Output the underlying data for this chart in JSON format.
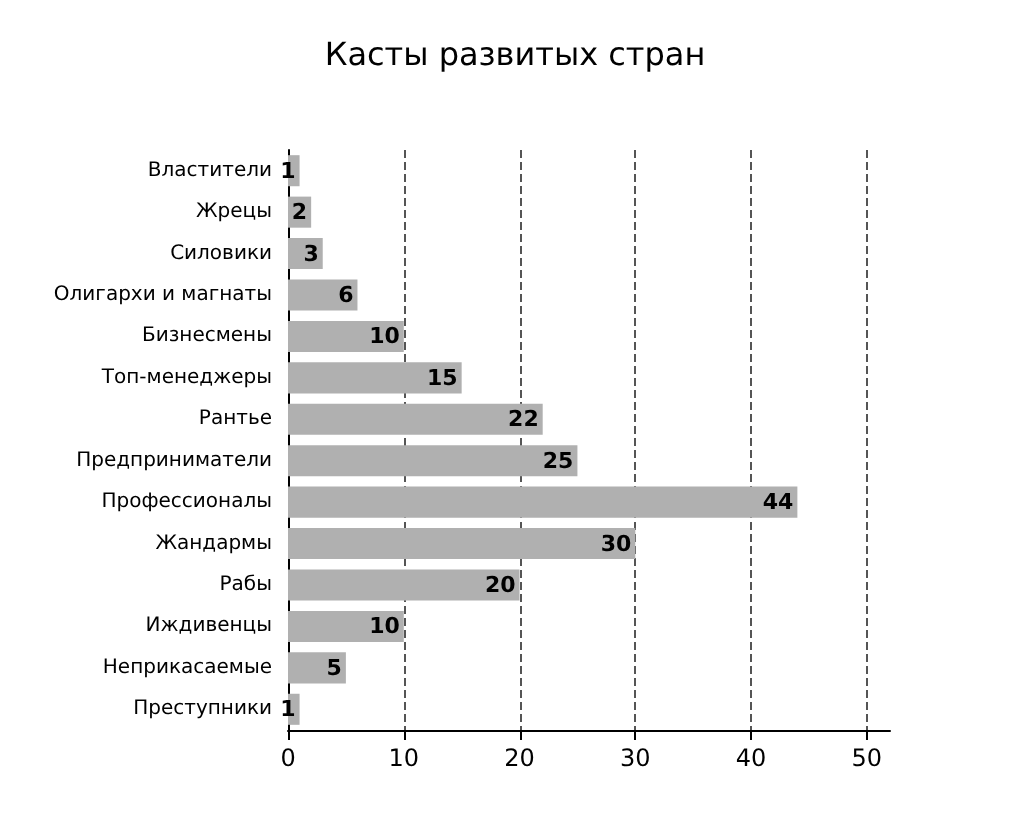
{
  "chart_data": {
    "type": "bar",
    "orientation": "horizontal",
    "title": "Касты развитых стран",
    "categories": [
      "Властители",
      "Жрецы",
      "Силовики",
      "Олигархи и магнаты",
      "Бизнесмены",
      "Топ-менеджеры",
      "Рантье",
      "Предприниматели",
      "Профессионалы",
      "Жандармы",
      "Рабы",
      "Иждивенцы",
      "Неприкасаемые",
      "Преступники"
    ],
    "values": [
      1,
      2,
      3,
      6,
      10,
      15,
      22,
      25,
      44,
      30,
      20,
      10,
      5,
      1
    ],
    "color": "#b0b0b0",
    "xlim": [
      0,
      52
    ],
    "xticks": [
      0,
      10,
      20,
      30,
      40,
      50
    ],
    "grid": "x",
    "data_labels": true
  }
}
